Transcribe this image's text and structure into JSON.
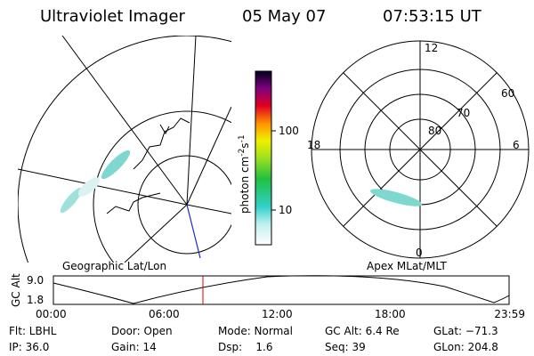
{
  "header": {
    "instrument": "Ultraviolet Imager",
    "date": "05 May 07",
    "time": "07:53:15 UT"
  },
  "geo_panel": {
    "label": "Geographic Lat/Lon"
  },
  "colorbar": {
    "unit_base": "photon cm",
    "unit_exp1": "-2",
    "unit_mid": "s",
    "unit_exp2": "-1",
    "ticks": [
      "100",
      "10"
    ]
  },
  "polar_panel": {
    "label": "Apex MLat/MLT",
    "mlt": [
      "12",
      "18",
      "6",
      "0"
    ],
    "mlat": [
      "60",
      "70",
      "80"
    ]
  },
  "orbit": {
    "ylabel": "GC Alt",
    "yticks": [
      "9.0",
      "1.8"
    ],
    "xticks": [
      "00:00",
      "06:00",
      "12:00",
      "18:00",
      "23:59"
    ]
  },
  "status": {
    "rows": [
      [
        "Flt: LBHL",
        "Door: Open",
        "Mode: Normal",
        "GC Alt: 6.4 Re",
        "GLat: −71.3"
      ],
      [
        "IP: 36.0",
        "Gain: 14",
        "Dsp:    1.6",
        "Seq: 39",
        "GLon: 204.8"
      ]
    ]
  }
}
